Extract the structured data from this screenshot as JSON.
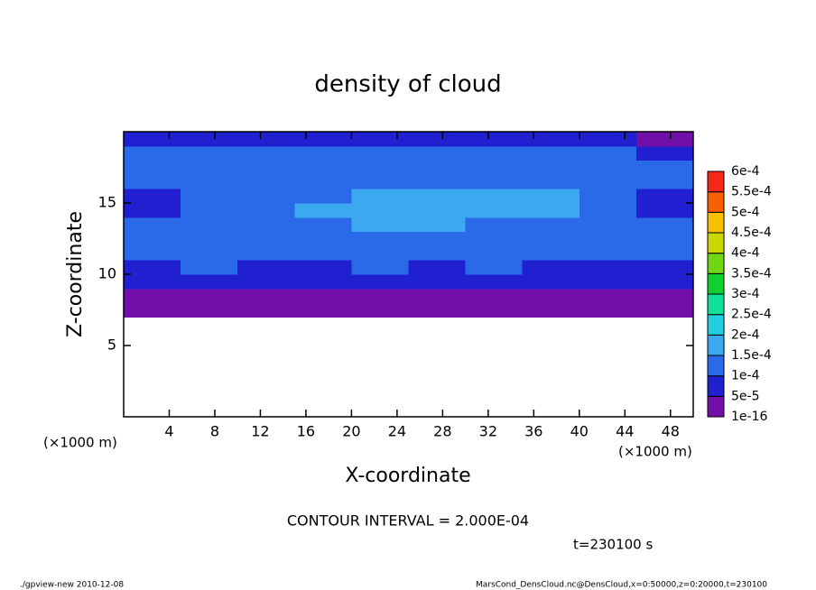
{
  "chart_data": {
    "type": "contour",
    "title": "density of cloud",
    "xlabel": "X-coordinate",
    "ylabel": "Z-coordinate",
    "x_unit": "(×1000 m)",
    "y_unit": "(×1000 m)",
    "xlim": [
      0,
      50
    ],
    "ylim": [
      0,
      20
    ],
    "xticks": [
      4,
      8,
      12,
      16,
      20,
      24,
      28,
      32,
      36,
      40,
      44,
      48
    ],
    "yticks": [
      5,
      10,
      15
    ],
    "x_edges": [
      0,
      5,
      10,
      15,
      20,
      25,
      30,
      35,
      40,
      45,
      50
    ],
    "z_edges": [
      0,
      1,
      2,
      3,
      4,
      5,
      6,
      7,
      8,
      9,
      10,
      11,
      12,
      13,
      14,
      15,
      16,
      17,
      18,
      19,
      20
    ],
    "values": [
      [
        null,
        null,
        null,
        null,
        null,
        null,
        null,
        null,
        null,
        null
      ],
      [
        null,
        null,
        null,
        null,
        null,
        null,
        null,
        null,
        null,
        null
      ],
      [
        null,
        null,
        null,
        null,
        null,
        null,
        null,
        null,
        null,
        null
      ],
      [
        null,
        null,
        null,
        null,
        null,
        null,
        null,
        null,
        null,
        null
      ],
      [
        null,
        null,
        null,
        null,
        null,
        null,
        null,
        null,
        null,
        null
      ],
      [
        null,
        null,
        null,
        null,
        null,
        null,
        null,
        null,
        null,
        null
      ],
      [
        null,
        null,
        null,
        null,
        null,
        null,
        null,
        null,
        null,
        null
      ],
      [
        2e-05,
        2e-05,
        2e-05,
        2e-05,
        2e-05,
        2e-05,
        2e-05,
        2e-05,
        2e-05,
        2e-05
      ],
      [
        4e-05,
        4e-05,
        4e-05,
        4e-05,
        4e-05,
        4e-05,
        4e-05,
        4e-05,
        4e-05,
        4e-05
      ],
      [
        7e-05,
        7e-05,
        7e-05,
        7e-05,
        7e-05,
        7e-05,
        7e-05,
        7e-05,
        7e-05,
        7e-05
      ],
      [
        9e-05,
        0.00011,
        9e-05,
        8e-05,
        0.00011,
        9e-05,
        0.00011,
        9e-05,
        9e-05,
        9e-05
      ],
      [
        0.00011,
        0.00012,
        0.00012,
        0.00011,
        0.00013,
        0.00012,
        0.00012,
        0.00012,
        0.00012,
        0.00011
      ],
      [
        0.00012,
        0.00013,
        0.00013,
        0.00012,
        0.00013,
        0.00013,
        0.00012,
        0.00013,
        0.00013,
        0.00012
      ],
      [
        0.00013,
        0.00014,
        0.00014,
        0.00011,
        0.00016,
        0.00015,
        0.00013,
        0.00014,
        0.00014,
        0.00013
      ],
      [
        6e-05,
        0.00014,
        0.00013,
        0.00015,
        0.00016,
        0.00016,
        0.00015,
        0.00016,
        0.00012,
        6e-05
      ],
      [
        6e-05,
        0.00013,
        0.00012,
        0.00014,
        0.00015,
        0.00016,
        0.00016,
        0.00016,
        0.00013,
        8e-05
      ],
      [
        0.00011,
        0.00012,
        0.00012,
        0.00013,
        0.00013,
        0.00014,
        0.00013,
        0.00014,
        0.00013,
        0.00012
      ],
      [
        0.00011,
        0.00012,
        0.00012,
        0.00012,
        0.00012,
        0.00012,
        0.00012,
        0.00012,
        0.00012,
        0.00011
      ],
      [
        0.00011,
        0.00012,
        0.00012,
        0.00011,
        0.00011,
        0.00011,
        0.00012,
        0.00011,
        0.00011,
        9e-05
      ],
      [
        6e-05,
        7e-05,
        7e-05,
        7e-05,
        7e-05,
        7e-05,
        7e-05,
        7e-05,
        6e-05,
        4e-05
      ]
    ],
    "levels": [
      {
        "value": 1e-16,
        "label": "1e-16"
      },
      {
        "value": 5e-05,
        "label": "5e-5"
      },
      {
        "value": 0.0001,
        "label": "1e-4"
      },
      {
        "value": 0.00015,
        "label": "1.5e-4"
      },
      {
        "value": 0.0002,
        "label": "2e-4"
      },
      {
        "value": 0.00025,
        "label": "2.5e-4"
      },
      {
        "value": 0.0003,
        "label": "3e-4"
      },
      {
        "value": 0.00035,
        "label": "3.5e-4"
      },
      {
        "value": 0.0004,
        "label": "4e-4"
      },
      {
        "value": 0.00045,
        "label": "4.5e-4"
      },
      {
        "value": 0.0005,
        "label": "5e-4"
      },
      {
        "value": 0.00055,
        "label": "5.5e-4"
      },
      {
        "value": 0.0006,
        "label": "6e-4"
      }
    ],
    "colors": [
      "#7010a8",
      "#2020d0",
      "#2a6ae8",
      "#3ca8f0",
      "#20d0e0",
      "#10e098",
      "#10d030",
      "#70d810",
      "#c8d800",
      "#f8c000",
      "#f86000",
      "#f82818"
    ],
    "annotations": [
      "CONTOUR INTERVAL = 2.000E-04",
      "t=230100 s"
    ],
    "footer_left": "./gpview-new  2010-12-08",
    "footer_right": "MarsCond_DensCloud.nc@DensCloud,x=0:50000,z=0:20000,t=230100"
  }
}
